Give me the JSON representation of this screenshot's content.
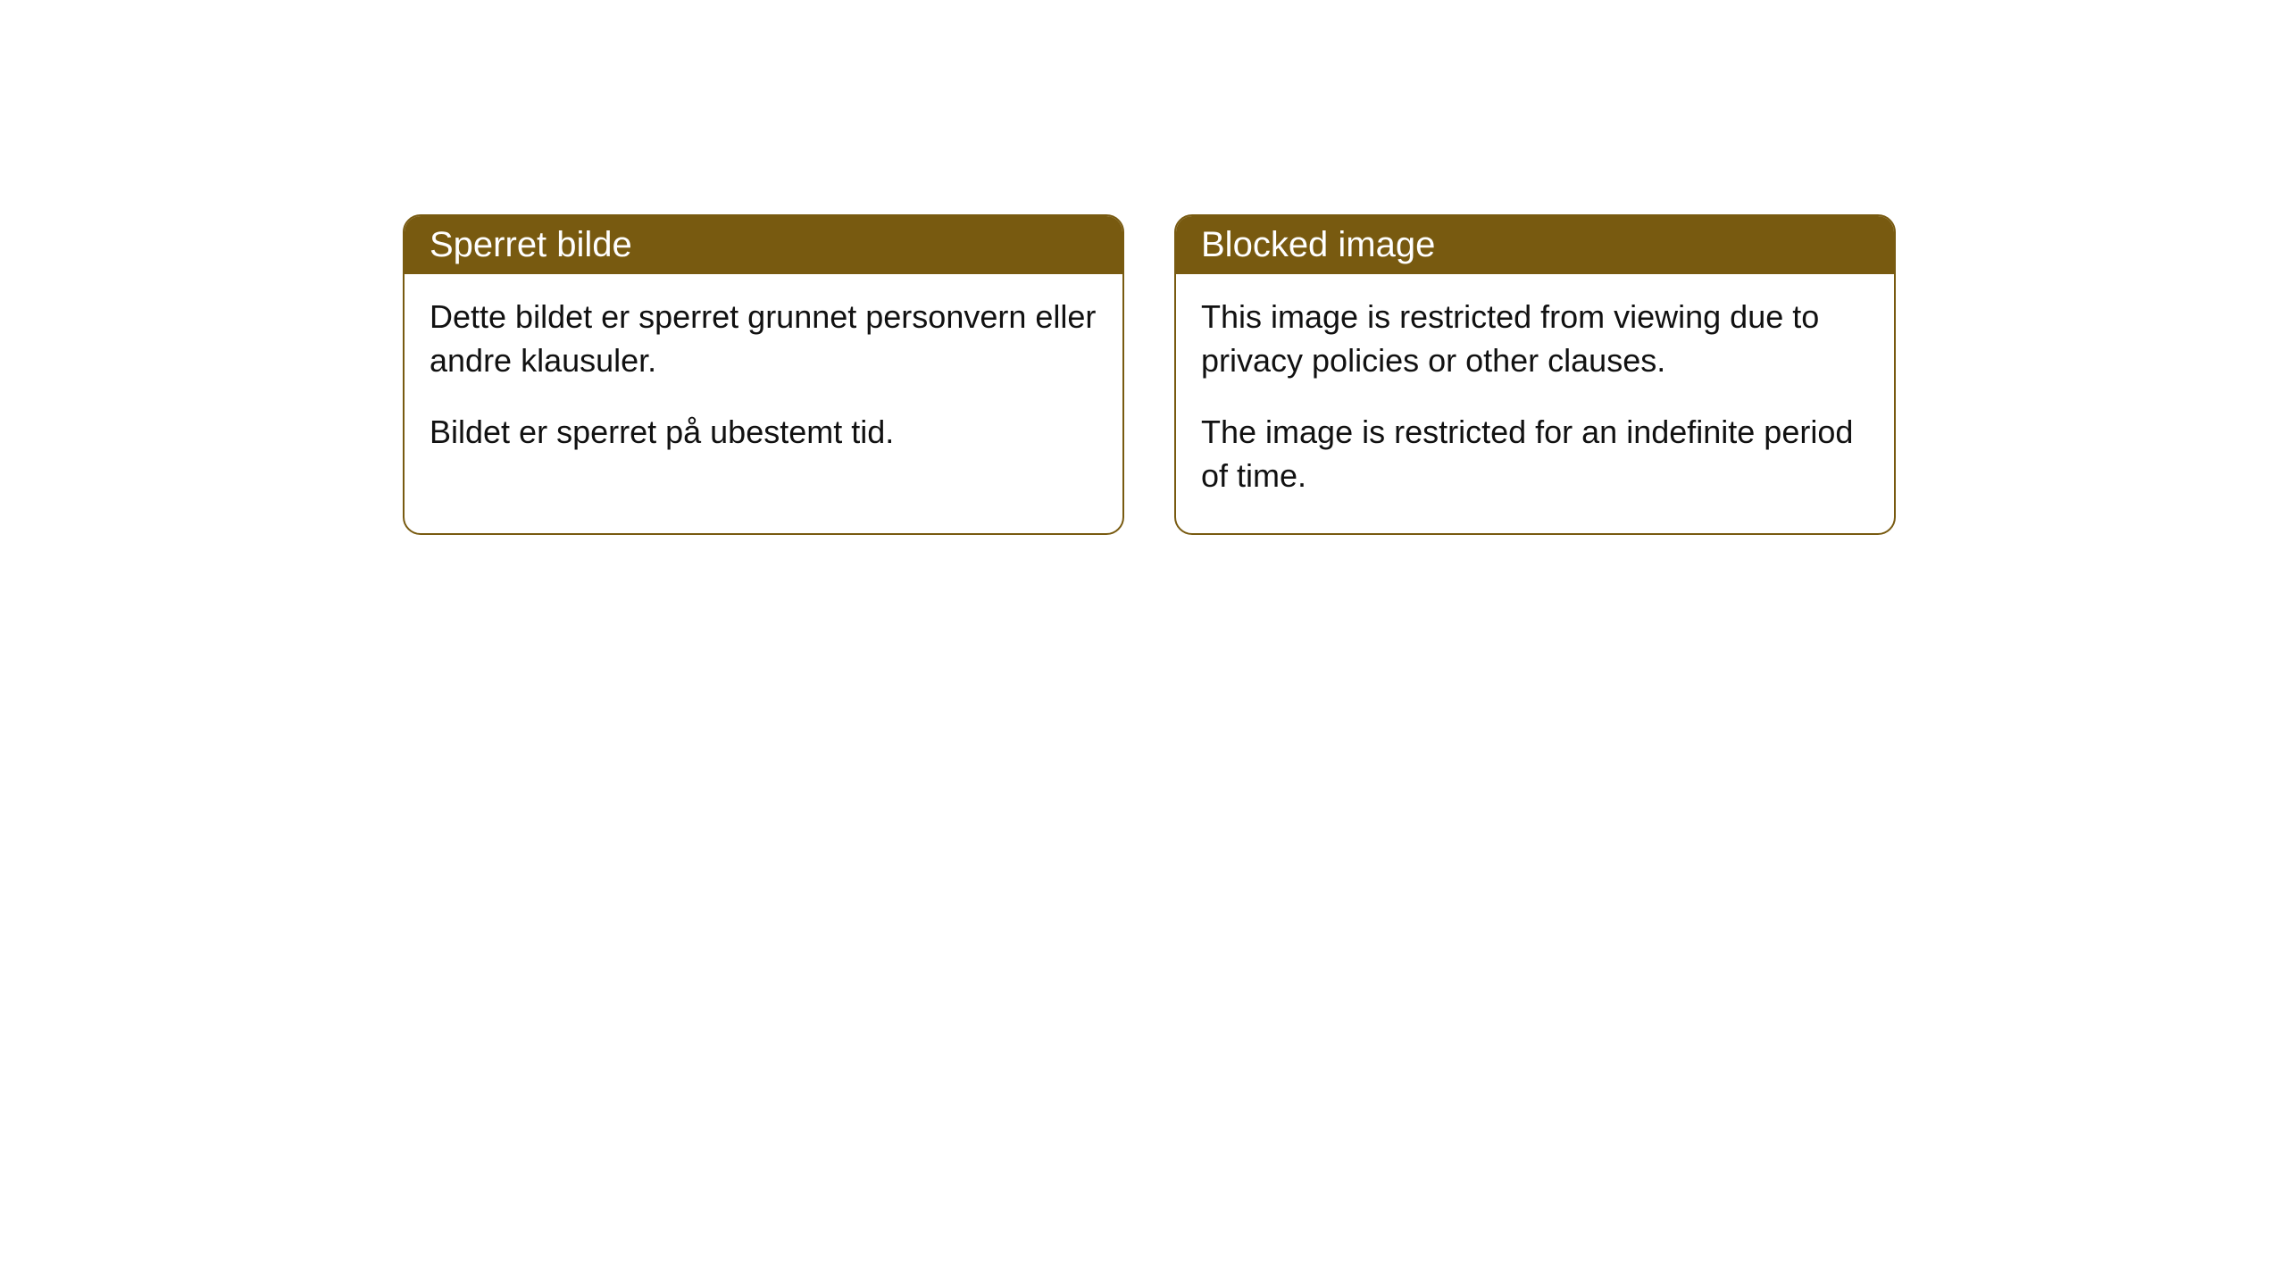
{
  "cards": [
    {
      "title": "Sperret bilde",
      "paragraph1": "Dette bildet er sperret grunnet personvern eller andre klausuler.",
      "paragraph2": "Bildet er sperret på ubestemt tid."
    },
    {
      "title": "Blocked image",
      "paragraph1": "This image is restricted from viewing due to privacy policies or other clauses.",
      "paragraph2": "The image is restricted for an indefinite period of time."
    }
  ],
  "style": {
    "header_background": "#785a10",
    "header_text_color": "#ffffff",
    "border_color": "#785a10",
    "body_text_color": "#111111",
    "page_background": "#ffffff",
    "border_radius": 20,
    "header_fontsize": 40,
    "body_fontsize": 36
  }
}
